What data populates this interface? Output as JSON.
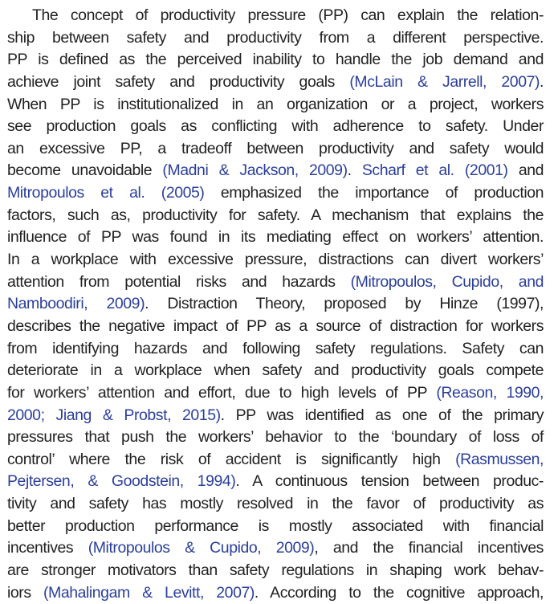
{
  "paragraph": {
    "lines": [
      [
        {
          "t": "The concept of productivity pressure (PP) can explain the relation-"
        }
      ],
      [
        {
          "t": "ship between safety and productivity from a different perspective."
        }
      ],
      [
        {
          "t": "PP is defined as the perceived inability to handle the job demand and"
        }
      ],
      [
        {
          "t": "achieve joint safety and productivity goals "
        },
        {
          "t": "(McLain & Jarrell, 2007)",
          "cite": true
        },
        {
          "t": "."
        }
      ],
      [
        {
          "t": "When PP is institutionalized in an organization or a project, workers"
        }
      ],
      [
        {
          "t": "see production goals as conflicting with adherence to safety. Under"
        }
      ],
      [
        {
          "t": "an excessive PP, a tradeoff between productivity and safety would"
        }
      ],
      [
        {
          "t": "become unavoidable "
        },
        {
          "t": "(Madni & Jackson, 2009)",
          "cite": true
        },
        {
          "t": ". "
        },
        {
          "t": "Scharf et al. (2001)",
          "cite": true
        },
        {
          "t": " and"
        }
      ],
      [
        {
          "t": "Mitropoulos et al. (2005)",
          "cite": true
        },
        {
          "t": " emphasized the importance of production"
        }
      ],
      [
        {
          "t": "factors, such as, productivity for safety. A mechanism that explains the"
        }
      ],
      [
        {
          "t": "influence of PP was found in its mediating effect on workers’ attention."
        }
      ],
      [
        {
          "t": "In a workplace with excessive pressure, distractions can divert workers’"
        }
      ],
      [
        {
          "t": "attention from potential risks and hazards "
        },
        {
          "t": "(Mitropoulos, Cupido, and",
          "cite": true
        }
      ],
      [
        {
          "t": "Namboodiri, 2009)",
          "cite": true
        },
        {
          "t": ". Distraction Theory, proposed by Hinze (1997),"
        }
      ],
      [
        {
          "t": "describes the negative impact of PP as a source of distraction for workers"
        }
      ],
      [
        {
          "t": "from identifying hazards and following safety regulations. Safety can"
        }
      ],
      [
        {
          "t": "deteriorate in a workplace when safety and productivity goals compete"
        }
      ],
      [
        {
          "t": "for workers’ attention and effort, due to high levels of PP "
        },
        {
          "t": "(Reason, 1990,",
          "cite": true
        }
      ],
      [
        {
          "t": "2000; Jiang & Probst, 2015)",
          "cite": true
        },
        {
          "t": ". PP was identified as one of the primary"
        }
      ],
      [
        {
          "t": "pressures that push the workers’ behavior to the ‘boundary of loss of"
        }
      ],
      [
        {
          "t": "control’ where the risk of accident is significantly high "
        },
        {
          "t": "(Rasmussen,",
          "cite": true
        }
      ],
      [
        {
          "t": "Pejtersen, & Goodstein, 1994)",
          "cite": true
        },
        {
          "t": ". A continuous tension between produc-"
        }
      ],
      [
        {
          "t": "tivity and safety has mostly resolved in the favor of productivity as"
        }
      ],
      [
        {
          "t": "better production performance is mostly associated with financial"
        }
      ],
      [
        {
          "t": "incentives "
        },
        {
          "t": "(Mitropoulos & Cupido, 2009)",
          "cite": true
        },
        {
          "t": ", and the financial incentives"
        }
      ],
      [
        {
          "t": "are stronger motivators than safety regulations in shaping work behav-"
        }
      ],
      [
        {
          "t": "iors "
        },
        {
          "t": "(Mahalingam & Levitt, 2007)",
          "cite": true
        },
        {
          "t": ". According to the cognitive approach,"
        }
      ]
    ]
  },
  "colors": {
    "text": "#222222",
    "citation": "#2b3f9b"
  }
}
